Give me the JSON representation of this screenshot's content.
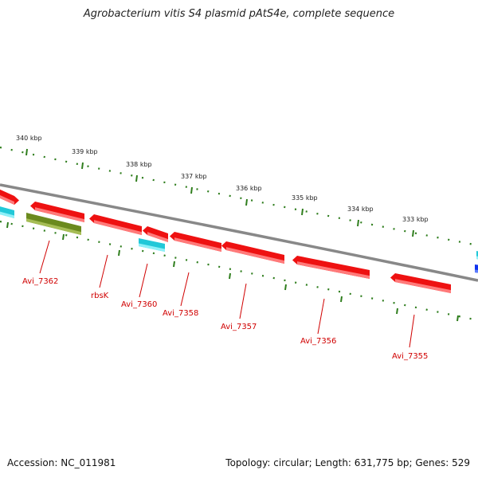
{
  "title": "Agrobacterium vitis S4 plasmid pAtS4e, complete sequence",
  "footer": {
    "accession": "Accession: NC_011981",
    "topology": "Topology: circular; Length: 631,775 bp; Genes: 529"
  },
  "colors": {
    "background": "#ffffff",
    "backbone": "#8a8a8a",
    "tick": "#2e7d1c",
    "gene_red": "#ee1111",
    "gene_cyan": "#22c8d8",
    "gene_olive": "#6b8a1e",
    "gene_blue": "#1133ee",
    "label": "#d00000"
  },
  "scale_ticks": [
    {
      "label": "340 kbp"
    },
    {
      "label": "339 kbp"
    },
    {
      "label": "338 kbp"
    },
    {
      "label": "337 kbp"
    },
    {
      "label": "336 kbp"
    },
    {
      "label": "335 kbp"
    },
    {
      "label": "334 kbp"
    },
    {
      "label": "333 kbp"
    }
  ],
  "genes": [
    {
      "color": "red"
    },
    {
      "color": "cyan"
    },
    {
      "color": "red",
      "name": "Avi_7362"
    },
    {
      "color": "olive"
    },
    {
      "color": "red",
      "name": "rbsK"
    },
    {
      "color": "red"
    },
    {
      "color": "cyan",
      "name": "Avi_7360"
    },
    {
      "color": "red",
      "name": "Avi_7358"
    },
    {
      "color": "red",
      "name": "Avi_7357"
    },
    {
      "color": "red",
      "name": "Avi_7356"
    },
    {
      "color": "red",
      "name": "Avi_7355"
    },
    {
      "color": "cyan"
    },
    {
      "color": "blue"
    }
  ]
}
